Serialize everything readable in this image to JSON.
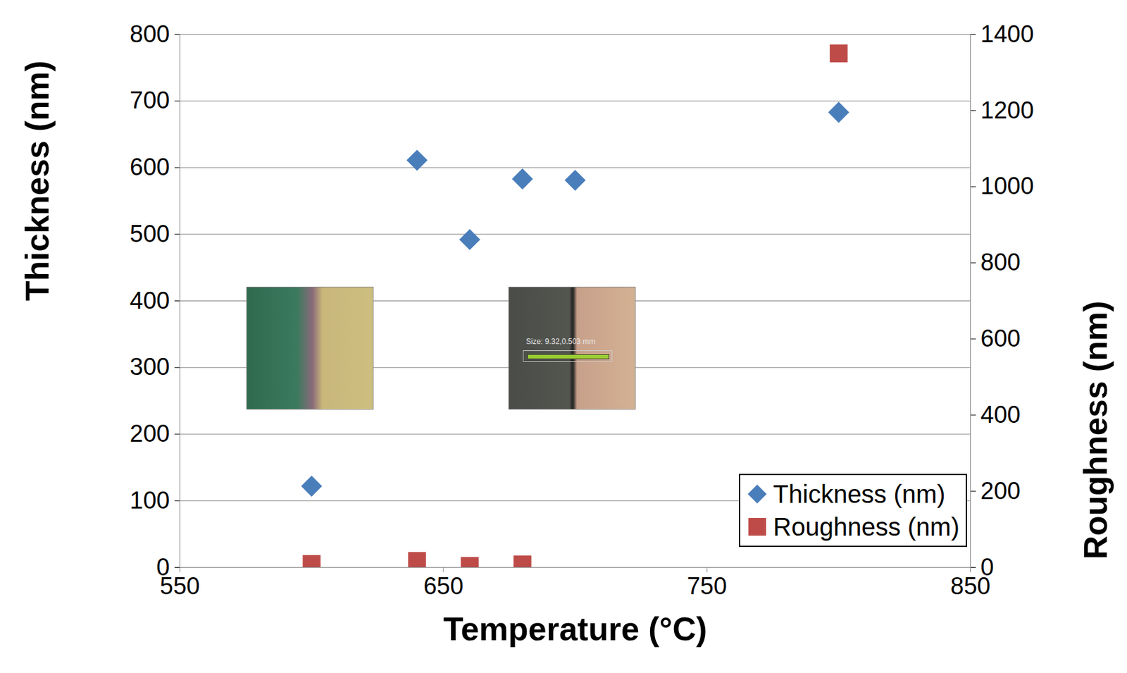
{
  "chart_data": {
    "type": "scatter",
    "x_label": "Temperature (°C)",
    "y_label": "Thickness (nm)",
    "y2_label": "Roughness (nm)",
    "xlim": [
      550,
      850
    ],
    "xticks": [
      550,
      650,
      750,
      850
    ],
    "ylim": [
      0,
      800
    ],
    "yticks": [
      0,
      100,
      200,
      300,
      400,
      500,
      600,
      700,
      800
    ],
    "y2lim": [
      0,
      1400
    ],
    "y2ticks": [
      0,
      200,
      400,
      600,
      800,
      1000,
      1200,
      1400
    ],
    "grid": true,
    "legend": "bottom-right",
    "series": [
      {
        "name": "Thickness (nm)",
        "color": "#4a7ebb",
        "marker": "diamond",
        "x": [
          600,
          640,
          660,
          680,
          700,
          800
        ],
        "values": [
          122,
          611,
          492,
          583,
          581,
          683
        ]
      },
      {
        "name": "Roughness (nm)",
        "color": "#be4b48",
        "marker": "square",
        "axis": "y2",
        "x": [
          600,
          640,
          660,
          680,
          800
        ],
        "values": [
          9,
          17,
          4,
          8,
          1350
        ]
      }
    ],
    "annotations": [
      {
        "text": "Size: 9.32,0.503 mm"
      }
    ]
  }
}
